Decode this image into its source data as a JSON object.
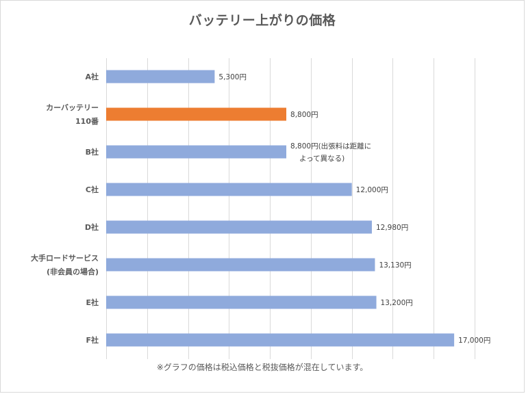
{
  "chart_data": {
    "type": "bar",
    "orientation": "horizontal",
    "title": "バッテリー上がりの価格",
    "categories": [
      [
        "A社"
      ],
      [
        "カーバッテリー",
        "110番"
      ],
      [
        "B社"
      ],
      [
        "C社"
      ],
      [
        "D社"
      ],
      [
        "大手ロードサービス",
        "(非会員の場合)"
      ],
      [
        "E社"
      ],
      [
        "F社"
      ]
    ],
    "values": [
      5300,
      8800,
      8800,
      12000,
      12980,
      13130,
      13200,
      17000
    ],
    "data_labels": [
      [
        "5,300円"
      ],
      [
        "8,800円"
      ],
      [
        "8,800円(出張料は距離に",
        "よって異なる)"
      ],
      [
        "12,000円"
      ],
      [
        "12,980円"
      ],
      [
        "13,130円"
      ],
      [
        "13,200円"
      ],
      [
        "17,000円"
      ]
    ],
    "highlight_index": 1,
    "colors": {
      "bar": "#8faadc",
      "highlight": "#ed7d31",
      "grid": "#d9d9d9",
      "text": "#595959",
      "label_text": "#404040"
    },
    "xlim": [
      0,
      18000
    ],
    "grid": true,
    "footnote": "※グラフの価格は税込価格と税抜価格が混在しています。"
  }
}
